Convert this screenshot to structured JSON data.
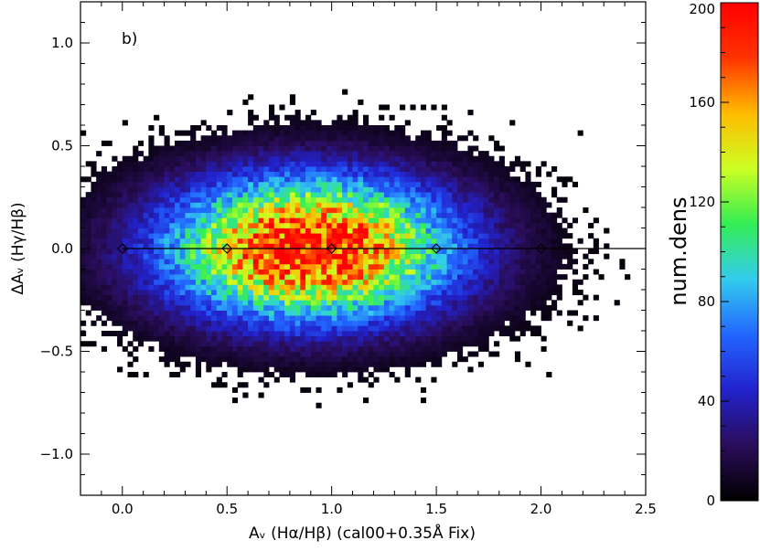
{
  "chart_data": {
    "type": "heatmap",
    "panel_label": "b)",
    "xlabel": "Aᵥ (Hα/Hβ) (cal00+0.35Å Fix)",
    "ylabel": "ΔAᵥ (Hγ/Hβ)",
    "xlim": [
      -0.2,
      2.5
    ],
    "ylim": [
      -1.2,
      1.2
    ],
    "x_ticks": [
      "0.0",
      "0.5",
      "1.0",
      "1.5",
      "2.0",
      "2.5"
    ],
    "y_ticks": [
      "-1.0",
      "-0.5",
      "0.0",
      "0.5",
      "1.0"
    ],
    "density": {
      "center_x": 0.9,
      "center_y": 0.0,
      "peak": 200,
      "spread_x": 0.48,
      "spread_y": 0.24,
      "extent_x": [
        -0.2,
        2.5
      ],
      "extent_y": [
        -1.2,
        1.2
      ]
    },
    "reference_line": {
      "y": 0.0,
      "x_range": [
        0.0,
        2.5
      ]
    },
    "markers": [
      {
        "x": 0.0,
        "y": 0.0
      },
      {
        "x": 0.5,
        "y": 0.0
      },
      {
        "x": 1.0,
        "y": 0.0
      },
      {
        "x": 1.5,
        "y": 0.0
      },
      {
        "x": 2.0,
        "y": 0.0
      }
    ],
    "colorbar": {
      "label": "num.dens",
      "range": [
        0,
        200
      ],
      "ticks": [
        "0",
        "40",
        "80",
        "120",
        "160",
        "200"
      ],
      "colormap": [
        "#000000",
        "#2a0d5a",
        "#2222cc",
        "#2266ff",
        "#33ccee",
        "#33ee55",
        "#ccff22",
        "#ffbb00",
        "#ff3300",
        "#ff0000"
      ]
    }
  }
}
